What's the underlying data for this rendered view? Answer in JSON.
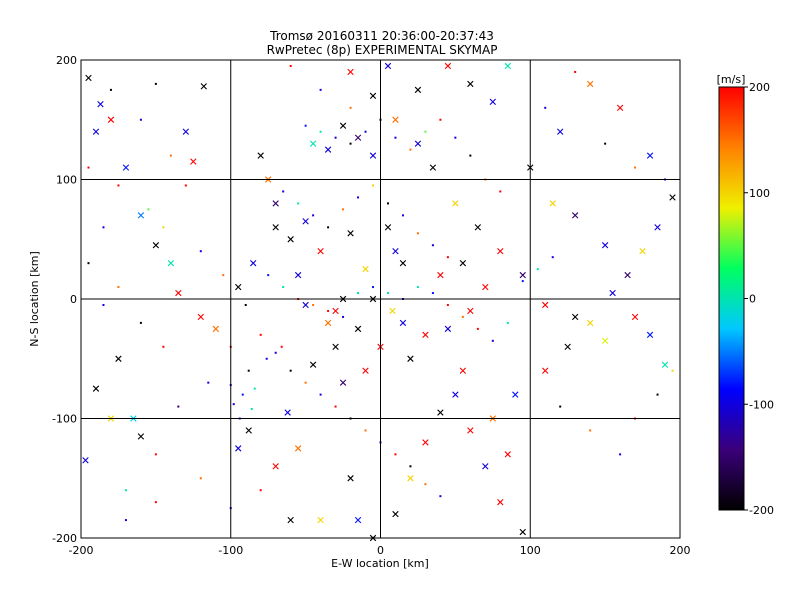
{
  "chart_data": {
    "type": "scatter",
    "title": "Tromsø 20160311 20:36:00-20:37:43",
    "subtitle": "RwPretec (8p) EXPERIMENTAL SKYMAP",
    "xlabel": "E-W location [km]",
    "ylabel": "N-S location [km]",
    "xlim": [
      -200,
      200
    ],
    "ylim": [
      -200,
      200
    ],
    "xticks": [
      -200,
      -100,
      0,
      100,
      200
    ],
    "yticks": [
      -200,
      -100,
      0,
      100,
      200
    ],
    "xtick_labels": [
      "-200",
      "-100",
      "0",
      "100",
      "200"
    ],
    "ytick_labels": [
      "-200",
      "-100",
      "0",
      "100",
      "200"
    ],
    "grid": true,
    "colorbar": {
      "label": "[m/s]",
      "range": [
        -200,
        200
      ],
      "ticks": [
        200,
        100,
        0,
        -100,
        -200
      ],
      "tick_labels": [
        "200",
        "100",
        "0",
        "-100",
        "-200"
      ],
      "colors": [
        "#000000",
        "#3a007a",
        "#0000ff",
        "#00c8ff",
        "#00ff60",
        "#f0f000",
        "#ff8000",
        "#ff0000"
      ]
    },
    "series": [
      {
        "marker": "x",
        "points": [
          [
            -195,
            185,
            -200
          ],
          [
            -187,
            163,
            -100
          ],
          [
            -180,
            150,
            200
          ],
          [
            -190,
            140,
            -100
          ],
          [
            -170,
            110,
            -80
          ],
          [
            -160,
            70,
            -50
          ],
          [
            -150,
            45,
            -200
          ],
          [
            -140,
            30,
            0
          ],
          [
            -135,
            5,
            200
          ],
          [
            -120,
            -15,
            200
          ],
          [
            -110,
            -25,
            150
          ],
          [
            -175,
            -50,
            -200
          ],
          [
            -190,
            -75,
            -200
          ],
          [
            -180,
            -100,
            100
          ],
          [
            -165,
            -100,
            -20
          ],
          [
            -160,
            -115,
            -200
          ],
          [
            -197,
            -135,
            -100
          ],
          [
            -130,
            140,
            -100
          ],
          [
            -125,
            115,
            200
          ],
          [
            -118,
            178,
            -200
          ],
          [
            -80,
            120,
            -200
          ],
          [
            -75,
            100,
            150
          ],
          [
            -70,
            60,
            -200
          ],
          [
            -55,
            20,
            -100
          ],
          [
            -40,
            40,
            200
          ],
          [
            -30,
            -10,
            200
          ],
          [
            -30,
            -40,
            -200
          ],
          [
            -25,
            -70,
            -150
          ],
          [
            -10,
            -60,
            200
          ],
          [
            -45,
            -55,
            -200
          ],
          [
            -62,
            -95,
            -100
          ],
          [
            -88,
            -110,
            -200
          ],
          [
            -95,
            -125,
            -100
          ],
          [
            -70,
            -140,
            200
          ],
          [
            -55,
            -125,
            150
          ],
          [
            -60,
            -185,
            -200
          ],
          [
            -40,
            -185,
            100
          ],
          [
            -20,
            -150,
            -200
          ],
          [
            -15,
            -185,
            -80
          ],
          [
            -5,
            -200,
            -200
          ],
          [
            10,
            -180,
            -200
          ],
          [
            20,
            -150,
            100
          ],
          [
            30,
            -120,
            200
          ],
          [
            40,
            -95,
            -200
          ],
          [
            50,
            -80,
            -100
          ],
          [
            55,
            -60,
            200
          ],
          [
            60,
            -110,
            200
          ],
          [
            70,
            -140,
            -100
          ],
          [
            80,
            -170,
            200
          ],
          [
            95,
            -195,
            -200
          ],
          [
            85,
            -130,
            200
          ],
          [
            75,
            -100,
            150
          ],
          [
            90,
            -80,
            -80
          ],
          [
            110,
            -60,
            200
          ],
          [
            125,
            -40,
            -200
          ],
          [
            140,
            -20,
            100
          ],
          [
            155,
            5,
            -100
          ],
          [
            165,
            20,
            -150
          ],
          [
            175,
            40,
            100
          ],
          [
            185,
            60,
            -100
          ],
          [
            195,
            85,
            -200
          ],
          [
            180,
            120,
            -80
          ],
          [
            160,
            160,
            200
          ],
          [
            140,
            180,
            150
          ],
          [
            120,
            140,
            -100
          ],
          [
            100,
            110,
            -200
          ],
          [
            115,
            80,
            100
          ],
          [
            130,
            70,
            -150
          ],
          [
            150,
            45,
            -100
          ],
          [
            170,
            -15,
            200
          ],
          [
            180,
            -30,
            -80
          ],
          [
            190,
            -55,
            0
          ],
          [
            150,
            -35,
            80
          ],
          [
            130,
            -15,
            -200
          ],
          [
            110,
            -5,
            200
          ],
          [
            95,
            20,
            -150
          ],
          [
            80,
            40,
            200
          ],
          [
            65,
            60,
            -200
          ],
          [
            50,
            80,
            100
          ],
          [
            35,
            110,
            -200
          ],
          [
            25,
            130,
            -100
          ],
          [
            10,
            150,
            150
          ],
          [
            -5,
            170,
            -200
          ],
          [
            -20,
            190,
            200
          ],
          [
            5,
            195,
            -100
          ],
          [
            25,
            175,
            -200
          ],
          [
            45,
            195,
            200
          ],
          [
            60,
            180,
            -200
          ],
          [
            75,
            165,
            -100
          ],
          [
            85,
            195,
            0
          ],
          [
            -45,
            130,
            0
          ],
          [
            -35,
            125,
            -100
          ],
          [
            -25,
            145,
            -200
          ],
          [
            -15,
            135,
            -150
          ],
          [
            -5,
            120,
            -100
          ],
          [
            5,
            60,
            -200
          ],
          [
            10,
            40,
            -100
          ],
          [
            15,
            30,
            -200
          ],
          [
            -10,
            25,
            100
          ],
          [
            -20,
            55,
            -200
          ],
          [
            -50,
            65,
            -100
          ],
          [
            -60,
            50,
            -200
          ],
          [
            -70,
            80,
            -150
          ],
          [
            -85,
            30,
            -100
          ],
          [
            -95,
            10,
            -200
          ],
          [
            40,
            20,
            200
          ],
          [
            55,
            30,
            -200
          ],
          [
            70,
            10,
            200
          ],
          [
            60,
            -10,
            200
          ],
          [
            45,
            -25,
            -100
          ],
          [
            30,
            -30,
            200
          ],
          [
            20,
            -50,
            -200
          ],
          [
            0,
            -40,
            200
          ],
          [
            -15,
            -25,
            -200
          ],
          [
            -5,
            0,
            -200
          ],
          [
            8,
            -10,
            100
          ],
          [
            15,
            -20,
            -100
          ],
          [
            -25,
            0,
            -200
          ],
          [
            -35,
            -20,
            150
          ],
          [
            -50,
            -5,
            -100
          ]
        ]
      },
      {
        "marker": "dot",
        "points": [
          [
            -150,
            180,
            -200
          ],
          [
            -140,
            120,
            150
          ],
          [
            -130,
            95,
            200
          ],
          [
            -155,
            75,
            50
          ],
          [
            -145,
            60,
            100
          ],
          [
            -120,
            40,
            -100
          ],
          [
            -105,
            20,
            150
          ],
          [
            -90,
            -5,
            -200
          ],
          [
            -100,
            -40,
            200
          ],
          [
            -115,
            -70,
            -100
          ],
          [
            -135,
            -90,
            -150
          ],
          [
            -150,
            -130,
            200
          ],
          [
            -170,
            -160,
            0
          ],
          [
            -185,
            -5,
            -100
          ],
          [
            -195,
            30,
            -200
          ],
          [
            -175,
            95,
            200
          ],
          [
            -160,
            150,
            -100
          ],
          [
            -60,
            195,
            200
          ],
          [
            -40,
            175,
            -100
          ],
          [
            -20,
            160,
            150
          ],
          [
            -50,
            145,
            -80
          ],
          [
            -40,
            140,
            0
          ],
          [
            -30,
            135,
            -100
          ],
          [
            -20,
            130,
            -200
          ],
          [
            -10,
            140,
            -100
          ],
          [
            0,
            150,
            -200
          ],
          [
            10,
            135,
            -100
          ],
          [
            20,
            125,
            150
          ],
          [
            30,
            140,
            50
          ],
          [
            40,
            150,
            200
          ],
          [
            50,
            135,
            -100
          ],
          [
            60,
            120,
            -200
          ],
          [
            70,
            100,
            150
          ],
          [
            80,
            90,
            200
          ],
          [
            -65,
            90,
            -100
          ],
          [
            -55,
            80,
            0
          ],
          [
            -45,
            70,
            -100
          ],
          [
            -35,
            60,
            -200
          ],
          [
            -25,
            75,
            150
          ],
          [
            -15,
            85,
            -100
          ],
          [
            -5,
            95,
            100
          ],
          [
            5,
            80,
            -200
          ],
          [
            15,
            70,
            -100
          ],
          [
            25,
            55,
            150
          ],
          [
            35,
            45,
            -100
          ],
          [
            45,
            35,
            200
          ],
          [
            -75,
            20,
            -80
          ],
          [
            -65,
            10,
            0
          ],
          [
            -55,
            0,
            200
          ],
          [
            -45,
            -5,
            150
          ],
          [
            -35,
            -10,
            200
          ],
          [
            -25,
            -15,
            -100
          ],
          [
            -15,
            5,
            0
          ],
          [
            -5,
            10,
            -80
          ],
          [
            5,
            5,
            0
          ],
          [
            15,
            0,
            -100
          ],
          [
            25,
            10,
            0
          ],
          [
            35,
            5,
            -80
          ],
          [
            45,
            -5,
            200
          ],
          [
            55,
            -15,
            150
          ],
          [
            65,
            -25,
            200
          ],
          [
            75,
            -35,
            -100
          ],
          [
            85,
            -20,
            0
          ],
          [
            95,
            15,
            -80
          ],
          [
            105,
            25,
            0
          ],
          [
            115,
            35,
            -100
          ],
          [
            -80,
            -30,
            200
          ],
          [
            -70,
            -45,
            -100
          ],
          [
            -60,
            -60,
            -200
          ],
          [
            -50,
            -70,
            150
          ],
          [
            -40,
            -80,
            -100
          ],
          [
            -30,
            -90,
            200
          ],
          [
            -20,
            -100,
            -200
          ],
          [
            -10,
            -110,
            150
          ],
          [
            0,
            -120,
            -100
          ],
          [
            10,
            -130,
            200
          ],
          [
            20,
            -140,
            -200
          ],
          [
            30,
            -155,
            150
          ],
          [
            40,
            -165,
            -100
          ],
          [
            -92,
            -80,
            -80
          ],
          [
            -98,
            -88,
            -100
          ],
          [
            -86,
            -92,
            0
          ],
          [
            -94,
            -100,
            -80
          ],
          [
            -100,
            -72,
            -100
          ],
          [
            -84,
            -75,
            0
          ],
          [
            -88,
            -60,
            -200
          ],
          [
            -76,
            -50,
            -100
          ],
          [
            -66,
            -40,
            200
          ],
          [
            120,
            -90,
            -200
          ],
          [
            140,
            -110,
            150
          ],
          [
            160,
            -130,
            -100
          ],
          [
            170,
            -100,
            200
          ],
          [
            185,
            -80,
            -200
          ],
          [
            195,
            -60,
            100
          ],
          [
            110,
            160,
            -100
          ],
          [
            130,
            190,
            200
          ],
          [
            150,
            130,
            -200
          ],
          [
            170,
            110,
            150
          ],
          [
            190,
            100,
            -100
          ],
          [
            -145,
            -40,
            200
          ],
          [
            -160,
            -20,
            -200
          ],
          [
            -175,
            10,
            150
          ],
          [
            -185,
            60,
            -100
          ],
          [
            -195,
            110,
            200
          ],
          [
            -180,
            175,
            -200
          ],
          [
            -170,
            -185,
            -100
          ],
          [
            -150,
            -170,
            200
          ],
          [
            -120,
            -150,
            150
          ],
          [
            -100,
            -175,
            -100
          ],
          [
            -80,
            -160,
            200
          ]
        ]
      }
    ]
  }
}
